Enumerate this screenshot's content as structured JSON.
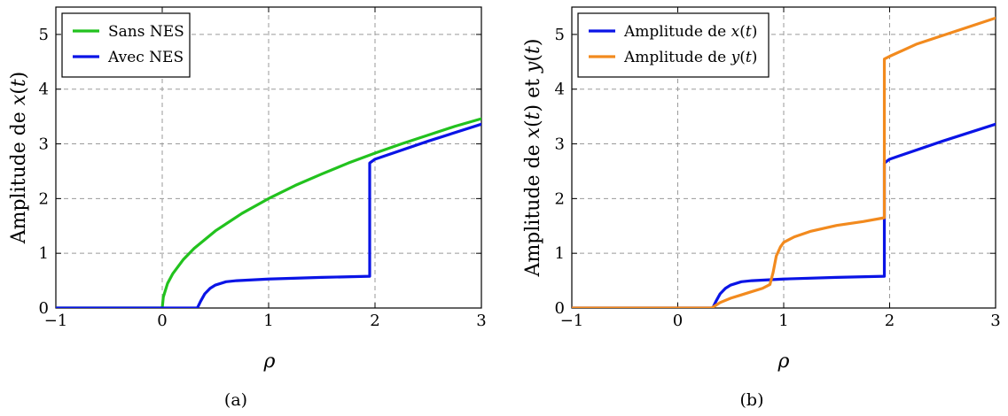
{
  "chart_data": [
    {
      "type": "line",
      "caption": "(a)",
      "xlabel": "ρ",
      "ylabel": "Amplitude de x(t)",
      "xlim": [
        -1,
        3
      ],
      "ylim": [
        0,
        5.5
      ],
      "xticks": [
        -1,
        0,
        1,
        2,
        3
      ],
      "yticks": [
        0,
        1,
        2,
        3,
        4,
        5
      ],
      "grid": true,
      "legend_position": "top-left",
      "series": [
        {
          "name": "Sans NES",
          "color": "#22c21e",
          "x": [
            -1,
            -0.5,
            0,
            0.01,
            0.05,
            0.1,
            0.2,
            0.3,
            0.5,
            0.75,
            1.0,
            1.25,
            1.5,
            1.75,
            2.0,
            2.25,
            2.5,
            2.75,
            3.0
          ],
          "y": [
            0,
            0,
            0,
            0.2,
            0.45,
            0.63,
            0.89,
            1.09,
            1.41,
            1.73,
            2.0,
            2.24,
            2.45,
            2.65,
            2.83,
            3.0,
            3.16,
            3.32,
            3.46
          ]
        },
        {
          "name": "Avec NES",
          "color": "#0a14e6",
          "x": [
            -1,
            0,
            0.33,
            0.36,
            0.4,
            0.45,
            0.5,
            0.6,
            0.7,
            1.0,
            1.5,
            1.95,
            1.95,
            2.0,
            2.5,
            3.0
          ],
          "y": [
            0,
            0,
            0,
            0.12,
            0.26,
            0.36,
            0.42,
            0.48,
            0.5,
            0.53,
            0.56,
            0.58,
            2.65,
            2.72,
            3.05,
            3.36
          ]
        }
      ]
    },
    {
      "type": "line",
      "caption": "(b)",
      "xlabel": "ρ",
      "ylabel": "Amplitude de x(t) et y(t)",
      "xlim": [
        -1,
        3
      ],
      "ylim": [
        0,
        5.5
      ],
      "xticks": [
        -1,
        0,
        1,
        2,
        3
      ],
      "yticks": [
        0,
        1,
        2,
        3,
        4,
        5
      ],
      "grid": true,
      "legend_position": "top-left",
      "series": [
        {
          "name": "Amplitude de x(t)",
          "color": "#0a14e6",
          "x": [
            -1,
            0,
            0.33,
            0.36,
            0.4,
            0.45,
            0.5,
            0.6,
            0.7,
            1.0,
            1.5,
            1.95,
            1.95,
            2.0,
            2.5,
            3.0
          ],
          "y": [
            0,
            0,
            0,
            0.12,
            0.26,
            0.36,
            0.42,
            0.48,
            0.5,
            0.53,
            0.56,
            0.58,
            2.65,
            2.72,
            3.05,
            3.36
          ]
        },
        {
          "name": "Amplitude de y(t)",
          "color": "#f28a1e",
          "x": [
            -1,
            0,
            0.32,
            0.4,
            0.5,
            0.6,
            0.7,
            0.8,
            0.87,
            0.9,
            0.93,
            0.97,
            1.0,
            1.1,
            1.25,
            1.5,
            1.75,
            1.95,
            1.95,
            2.0,
            2.25,
            2.5,
            2.75,
            3.0
          ],
          "y": [
            0,
            0,
            0,
            0.1,
            0.18,
            0.24,
            0.3,
            0.36,
            0.43,
            0.65,
            0.95,
            1.12,
            1.2,
            1.3,
            1.4,
            1.51,
            1.58,
            1.65,
            4.55,
            4.6,
            4.82,
            4.98,
            5.14,
            5.3
          ]
        }
      ]
    }
  ]
}
